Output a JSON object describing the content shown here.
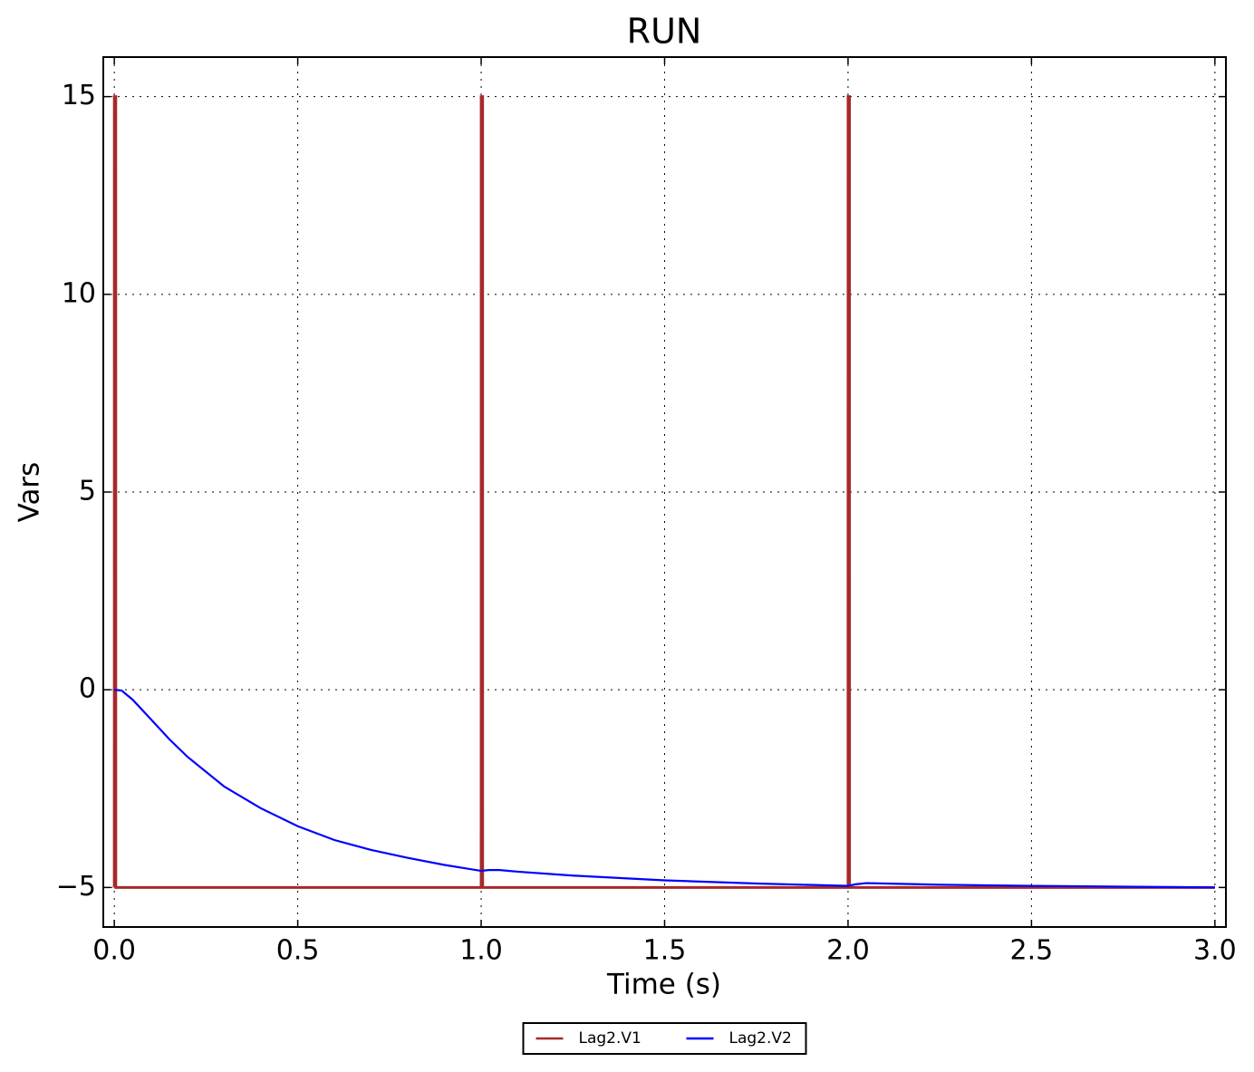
{
  "chart_data": {
    "type": "line",
    "title": "RUN",
    "xlabel": "Time (s)",
    "ylabel": "Vars",
    "xlim": [
      -0.03,
      3.03
    ],
    "ylim": [
      -6,
      16
    ],
    "xticks": [
      {
        "value": 0,
        "label": "0.0"
      },
      0.5,
      {
        "value": 1,
        "label": "1.0"
      },
      1.5,
      {
        "value": 2,
        "label": "2.0"
      },
      2.5,
      {
        "value": 3,
        "label": "3.0"
      }
    ],
    "yticks": [
      {
        "value": -5,
        "label": "−5"
      },
      0,
      5,
      10,
      15
    ],
    "grid": true,
    "legend": "below",
    "series": [
      {
        "name": "Lag2.V1",
        "color": "#a52a2a",
        "x": [
          0,
          0.0001,
          0.004,
          0.0041,
          1.0,
          1.0001,
          1.004,
          1.0041,
          2.0,
          2.0001,
          2.004,
          2.0041,
          3.0
        ],
        "values": [
          -5,
          15,
          15,
          -5,
          -5,
          15,
          15,
          -5,
          -5,
          15,
          15,
          -5,
          -5
        ]
      },
      {
        "name": "Lag2.V2",
        "color": "#0000ff",
        "x": [
          0,
          0.02,
          0.05,
          0.1,
          0.15,
          0.2,
          0.3,
          0.4,
          0.5,
          0.6,
          0.7,
          0.8,
          0.9,
          1.0,
          1.02,
          1.05,
          1.1,
          1.25,
          1.5,
          1.75,
          2.0,
          2.02,
          2.05,
          2.1,
          2.25,
          2.5,
          2.75,
          3.0
        ],
        "values": [
          0,
          -0.02,
          -0.25,
          -0.75,
          -1.25,
          -1.7,
          -2.45,
          -3.0,
          -3.45,
          -3.8,
          -4.05,
          -4.25,
          -4.43,
          -4.58,
          -4.56,
          -4.56,
          -4.6,
          -4.7,
          -4.82,
          -4.9,
          -4.96,
          -4.92,
          -4.89,
          -4.9,
          -4.93,
          -4.96,
          -4.98,
          -5
        ]
      }
    ]
  }
}
